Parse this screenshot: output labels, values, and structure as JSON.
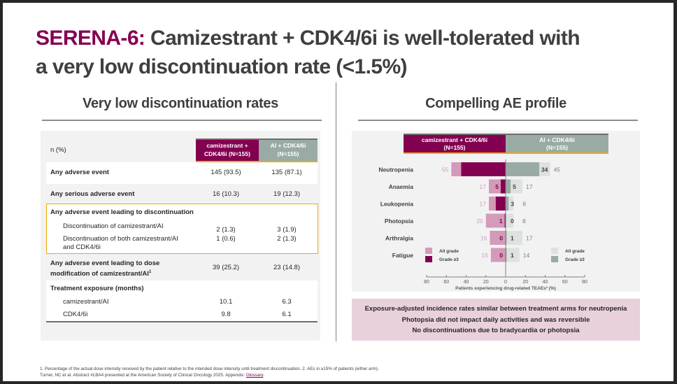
{
  "title": {
    "accent": "SERENA-6:",
    "line1_rest": " Camizestrant + CDK4/6i is well-tolerated with",
    "line2": "a very low discontinuation rate (<1.5%)"
  },
  "left_section": {
    "heading": "Very low discontinuation rates",
    "table": {
      "header_label": "n (%)",
      "col1_header_line1": "camizestrant +",
      "col1_header_line2": "CDK4/6i (N=155)",
      "col2_header_line1": "AI + CDK4/6i",
      "col2_header_line2": "(N=155)",
      "rows": [
        {
          "label": "Any adverse event",
          "v1": "145 (93.5)",
          "v2": "135 (87.1)"
        },
        {
          "label": "Any serious adverse event",
          "v1": "16 (10.3)",
          "v2": "19 (12.3)"
        },
        {
          "label": "Any adverse event leading to discontinuation",
          "v1": "",
          "v2": ""
        },
        {
          "label": "Discontinuation of camizestrant/AI",
          "v1": "2 (1.3)",
          "v2": "3 (1.9)"
        },
        {
          "label_line1": "Discontinuation of both camizestrant/AI",
          "label_line2": "and CDK4/6i",
          "v1": "1 (0.6)",
          "v2": "2 (1.3)"
        },
        {
          "label_line1": "Any adverse event leading to dose",
          "label_line2": "modification of camizestrant/AI",
          "sup": "1",
          "v1": "39 (25.2)",
          "v2": "23 (14.8)"
        },
        {
          "label": "Treatment exposure (months)",
          "v1": "",
          "v2": ""
        },
        {
          "label": "camizestrant/AI",
          "v1": "10.1",
          "v2": "6.3"
        },
        {
          "label": "CDK4/6i",
          "v1": "9.8",
          "v2": "6.1"
        }
      ]
    }
  },
  "right_section": {
    "heading": "Compelling AE profile",
    "notes": [
      "Exposure-adjusted incidence rates similar between treatment arms for neutropenia",
      "Photopsia did not impact daily activities and was reversible",
      "No discontinuations due to bradycardia or photopsia"
    ]
  },
  "chart_data": {
    "type": "bar",
    "orientation": "horizontal-butterfly",
    "arm_left": {
      "line1": "camizestrant + CDK4/6i",
      "line2": "(N=155)"
    },
    "arm_right": {
      "line1": "AI + CDK4/6i",
      "line2": "(N=155)"
    },
    "categories": [
      "Neutropenia",
      "Anaemia",
      "Leukopenia",
      "Photopsia",
      "Arthralgia",
      "Fatigue"
    ],
    "series": [
      {
        "name": "camizestrant + CDK4/6i All grade",
        "side": "left",
        "values": [
          55,
          17,
          17,
          20,
          16,
          15
        ],
        "color": "#d49ab9"
      },
      {
        "name": "camizestrant + CDK4/6i Grade ≥3",
        "side": "left",
        "values": [
          45,
          5,
          10,
          1,
          0,
          0
        ],
        "color": "#830051"
      },
      {
        "name": "AI + CDK4/6i All grade",
        "side": "right",
        "values": [
          45,
          17,
          8,
          8,
          17,
          14
        ],
        "color": "#dde2e0"
      },
      {
        "name": "AI + CDK4/6i Grade ≥3",
        "side": "right",
        "values": [
          34,
          5,
          3,
          0,
          1,
          1
        ],
        "color": "#9aaba5"
      }
    ],
    "legend_left": [
      "All grade",
      "Grade ≥3"
    ],
    "legend_right": [
      "All grade",
      "Grade ≥3"
    ],
    "legend_placement": "bottom-left and bottom-right",
    "xlabel": "Patients experiencing drug-related TEAEs² (%)",
    "xticks": [
      "80",
      "60",
      "40",
      "20",
      "0",
      "20",
      "40",
      "60",
      "80"
    ],
    "xlim": [
      -80,
      80
    ]
  },
  "footnotes": {
    "line1": "1. Percentage of the actual dose intensity received by the patient relative to the intended dose intensity until treatment discontinuation. 2. AEs in ≥15% of patients (either arm).",
    "line2_prefix": "Turner, NC et al. Abstract #LBA4 presented at the American Society of Clinical Oncology 2025. Appendix: ",
    "link": "Glossary",
    "line2_suffix": "."
  }
}
